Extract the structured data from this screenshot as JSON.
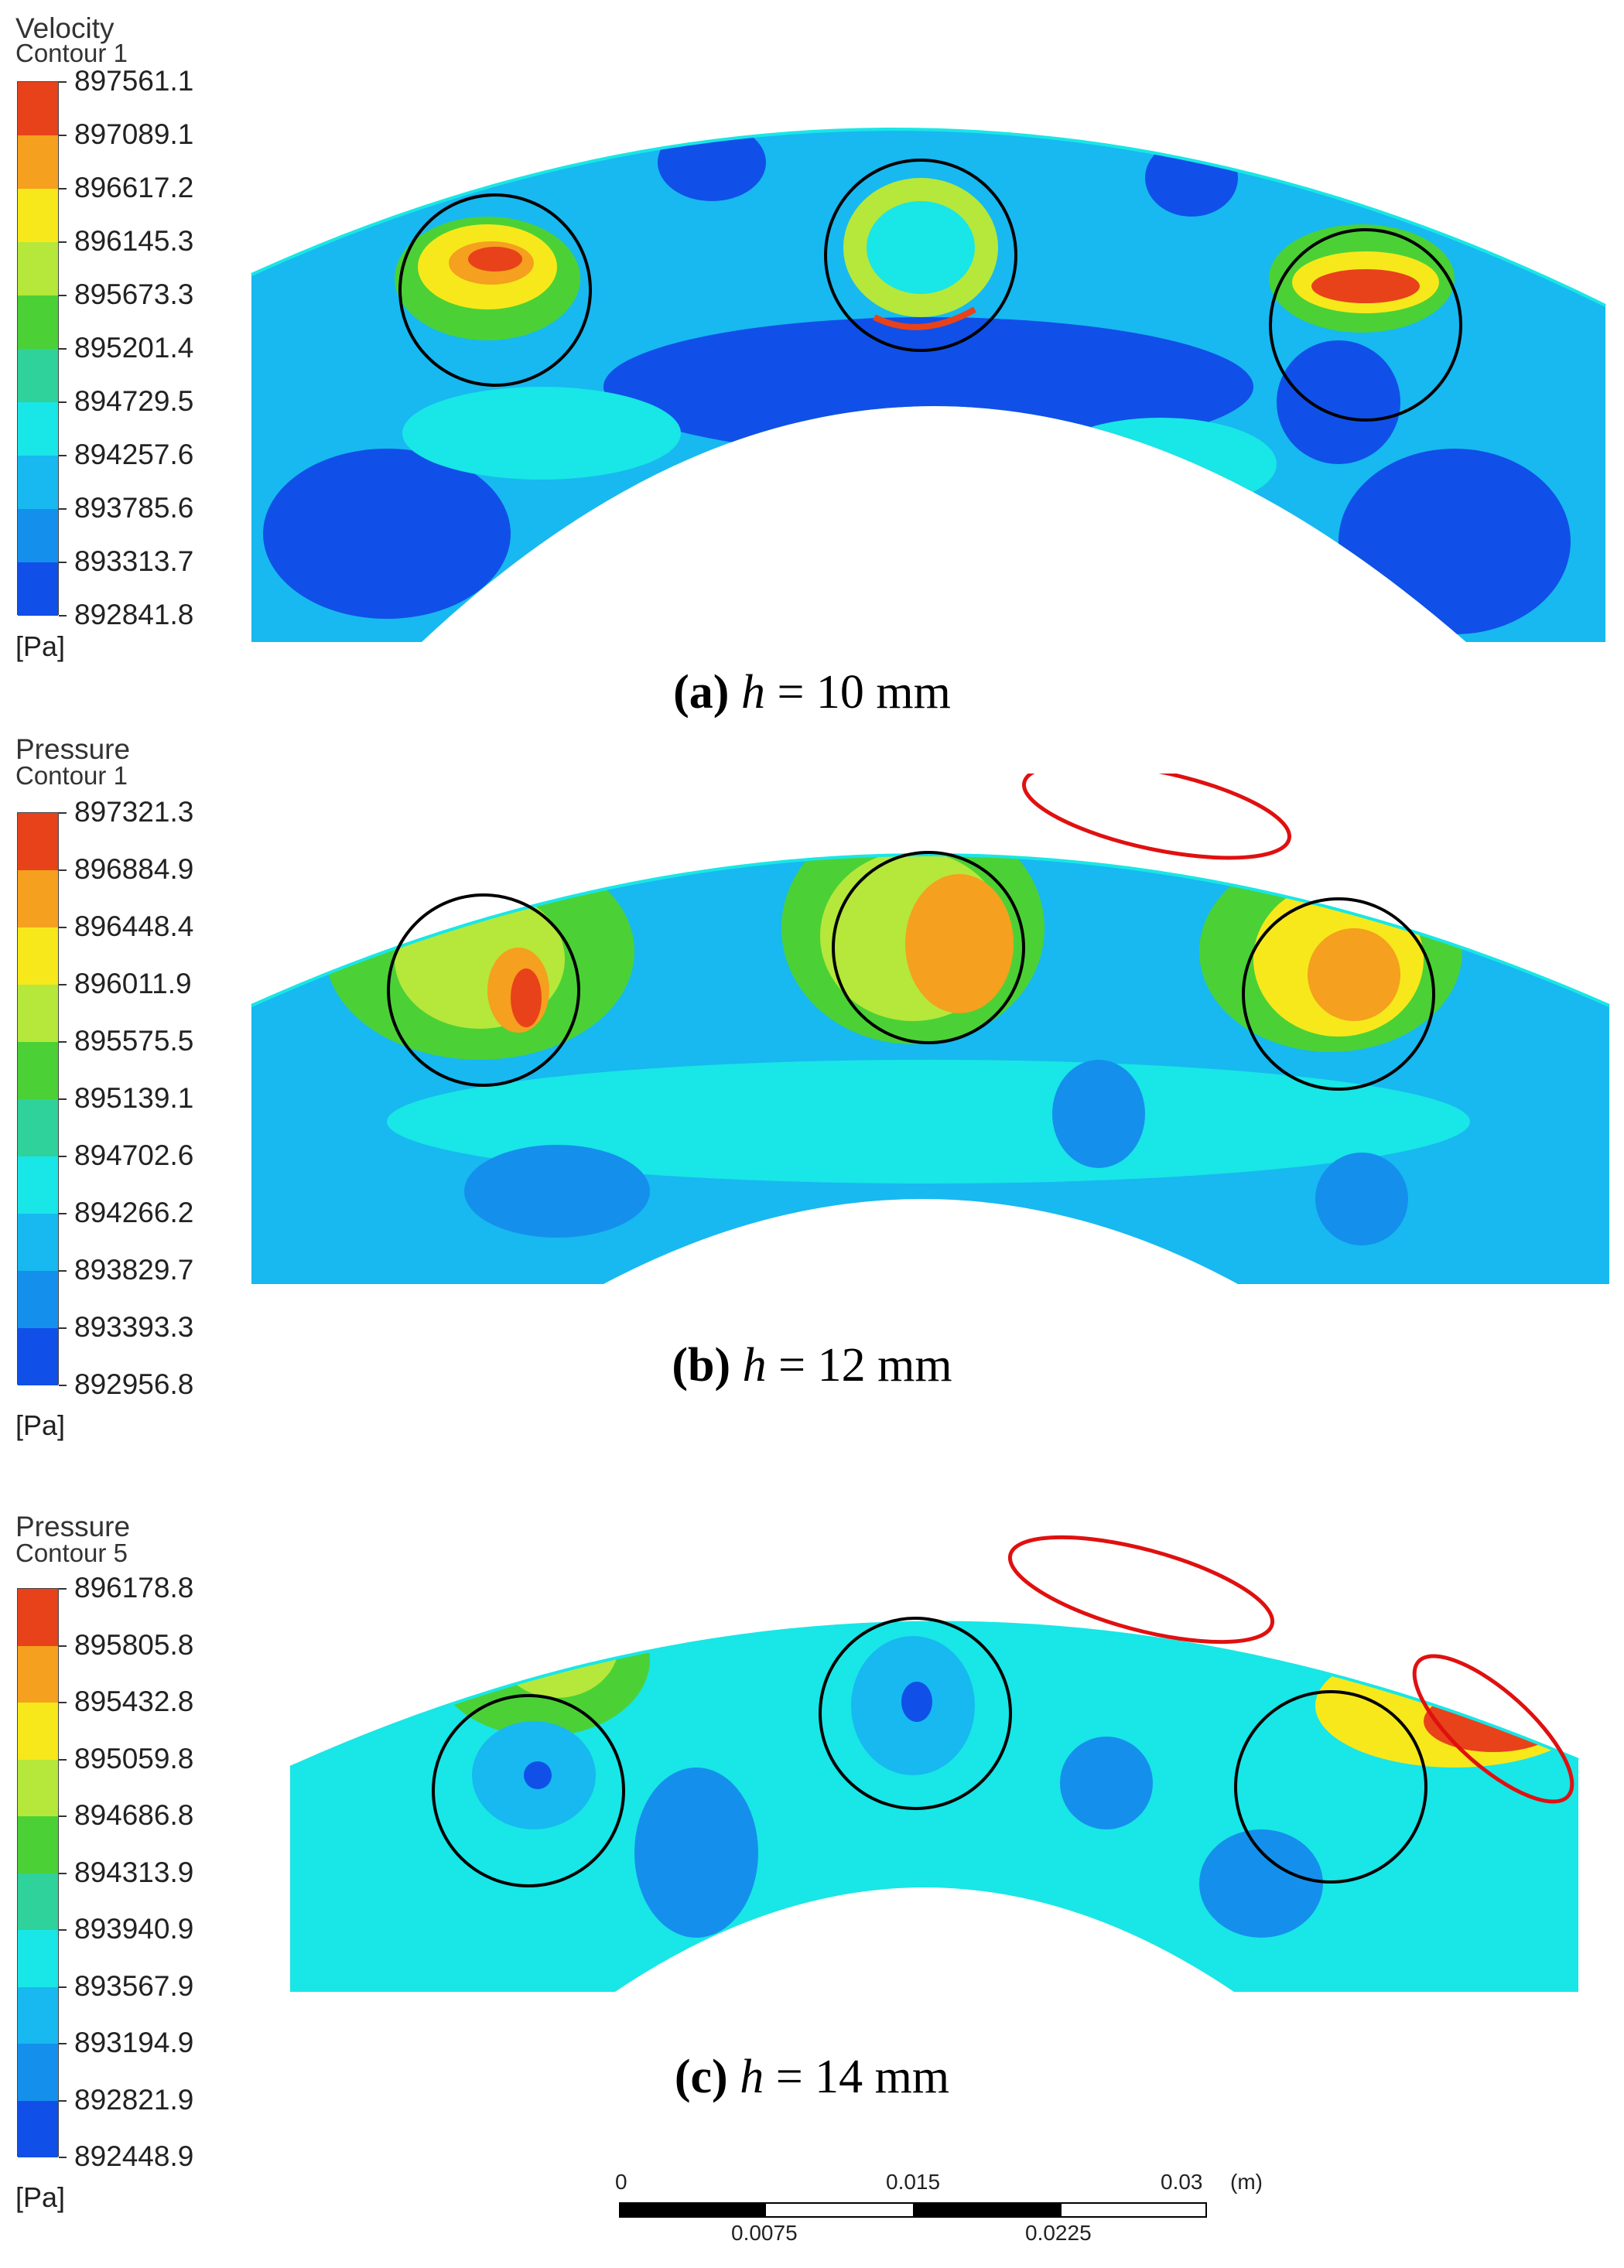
{
  "panels": [
    {
      "id": "a",
      "legend_title": "Velocity",
      "legend_subtitle": "Contour 1",
      "legend_values": [
        "897561.1",
        "897089.1",
        "896617.2",
        "896145.3",
        "895673.3",
        "895201.4",
        "894729.5",
        "894257.6",
        "893785.6",
        "893313.7",
        "892841.8"
      ],
      "unit": "[Pa]",
      "caption_label": "(a)",
      "caption_var": "h",
      "caption_rest": " = 10 mm"
    },
    {
      "id": "b",
      "legend_title": "Pressure",
      "legend_subtitle": "Contour 1",
      "legend_values": [
        "897321.3",
        "896884.9",
        "896448.4",
        "896011.9",
        "895575.5",
        "895139.1",
        "894702.6",
        "894266.2",
        "893829.7",
        "893393.3",
        "892956.8"
      ],
      "unit": "[Pa]",
      "caption_label": "(b)",
      "caption_var": "h",
      "caption_rest": " = 12 mm"
    },
    {
      "id": "c",
      "legend_title": "Pressure",
      "legend_subtitle": "Contour 5",
      "legend_values": [
        "896178.8",
        "895805.8",
        "895432.8",
        "895059.8",
        "894686.8",
        "894313.9",
        "893940.9",
        "893567.9",
        "893194.9",
        "892821.9",
        "892448.9"
      ],
      "unit": "[Pa]",
      "caption_label": "(c)",
      "caption_var": "h",
      "caption_rest": " = 14 mm"
    }
  ],
  "legend_colors": [
    "#e8421a",
    "#f5a01e",
    "#f7e81c",
    "#b5e83a",
    "#4bd136",
    "#2fd29a",
    "#19e6e6",
    "#17b9f0",
    "#1490ec",
    "#1050e8"
  ],
  "scalebar": {
    "ticks_top": [
      "0",
      "0.015",
      "0.03"
    ],
    "ticks_bottom": [
      "0.0075",
      "0.0225"
    ],
    "unit": "(m)"
  }
}
